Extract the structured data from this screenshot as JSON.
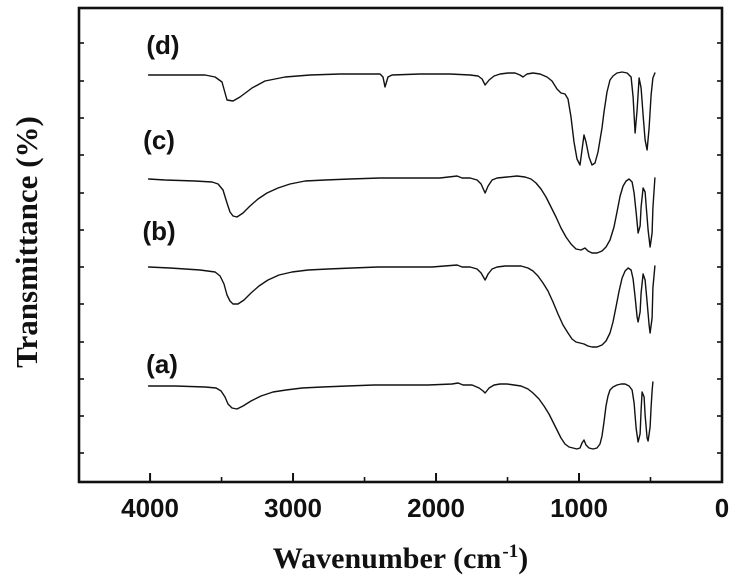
{
  "figure": {
    "background_color": "#ffffff",
    "ink_color": "#111111"
  },
  "chart_data": {
    "type": "line",
    "title": "",
    "description": "FTIR transmittance spectra of four samples (a)-(d), stacked with vertical offsets; y axis unlabeled (arbitrary %).",
    "xlabel": {
      "prefix": "Wavenumber (cm",
      "superscript": "-1",
      "suffix": ")"
    },
    "ylabel": "Transmittance (%)",
    "x_axis": {
      "unit": "cm-1",
      "range": [
        4497,
        0
      ],
      "reversed": true,
      "major_ticks": [
        4000,
        3000,
        2000,
        1000,
        0
      ],
      "minor_ticks": [
        3500,
        2500,
        1500,
        500
      ]
    },
    "y_axis": {
      "unit": "arbitrary transmittance (%)",
      "tick_labels_shown": false,
      "minor_ticks_au": [
        439,
        401,
        364,
        327,
        289,
        252,
        215,
        178,
        140,
        103,
        66,
        29
      ]
    },
    "series": [
      {
        "id": "d",
        "label": "(d)",
        "label_wn": 3910,
        "label_au": 437,
        "points": [
          [
            4010,
            407
          ],
          [
            3930,
            407
          ],
          [
            3615,
            407
          ],
          [
            3545,
            405
          ],
          [
            3497,
            400
          ],
          [
            3462,
            382
          ],
          [
            3420,
            381
          ],
          [
            3371,
            385
          ],
          [
            3287,
            394
          ],
          [
            3196,
            401
          ],
          [
            3056,
            405
          ],
          [
            2881,
            407
          ],
          [
            2671,
            408
          ],
          [
            2462,
            408
          ],
          [
            2392,
            408
          ],
          [
            2371,
            405
          ],
          [
            2357,
            395
          ],
          [
            2336,
            405
          ],
          [
            2308,
            407
          ],
          [
            2112,
            408
          ],
          [
            1902,
            408
          ],
          [
            1762,
            407
          ],
          [
            1706,
            406
          ],
          [
            1678,
            403
          ],
          [
            1657,
            397
          ],
          [
            1629,
            402
          ],
          [
            1594,
            406
          ],
          [
            1552,
            408
          ],
          [
            1496,
            409
          ],
          [
            1448,
            409
          ],
          [
            1413,
            407
          ],
          [
            1392,
            405
          ],
          [
            1364,
            408
          ],
          [
            1322,
            409
          ],
          [
            1273,
            408
          ],
          [
            1224,
            405
          ],
          [
            1189,
            401
          ],
          [
            1154,
            393
          ],
          [
            1126,
            389
          ],
          [
            1098,
            388
          ],
          [
            1077,
            383
          ],
          [
            1056,
            365
          ],
          [
            1035,
            340
          ],
          [
            1014,
            323
          ],
          [
            993,
            317
          ],
          [
            979,
            332
          ],
          [
            965,
            347
          ],
          [
            951,
            340
          ],
          [
            930,
            325
          ],
          [
            909,
            317
          ],
          [
            888,
            319
          ],
          [
            867,
            330
          ],
          [
            853,
            342
          ],
          [
            839,
            354
          ],
          [
            825,
            370
          ],
          [
            804,
            390
          ],
          [
            783,
            402
          ],
          [
            762,
            406
          ],
          [
            734,
            409
          ],
          [
            699,
            410
          ],
          [
            664,
            409
          ],
          [
            636,
            405
          ],
          [
            622,
            385
          ],
          [
            608,
            349
          ],
          [
            594,
            372
          ],
          [
            580,
            404
          ],
          [
            566,
            394
          ],
          [
            552,
            367
          ],
          [
            538,
            342
          ],
          [
            524,
            332
          ],
          [
            510,
            354
          ],
          [
            496,
            387
          ],
          [
            483,
            404
          ],
          [
            469,
            409
          ]
        ]
      },
      {
        "id": "c",
        "label": "(c)",
        "label_wn": 3937,
        "label_au": 342,
        "points": [
          [
            4010,
            303
          ],
          [
            3895,
            302
          ],
          [
            3685,
            301
          ],
          [
            3566,
            300
          ],
          [
            3524,
            298
          ],
          [
            3490,
            292
          ],
          [
            3462,
            279
          ],
          [
            3441,
            270
          ],
          [
            3420,
            266
          ],
          [
            3392,
            265
          ],
          [
            3350,
            269
          ],
          [
            3301,
            276
          ],
          [
            3245,
            283
          ],
          [
            3182,
            289
          ],
          [
            3105,
            294
          ],
          [
            3021,
            298
          ],
          [
            2916,
            301
          ],
          [
            2776,
            302
          ],
          [
            2601,
            303
          ],
          [
            2392,
            304
          ],
          [
            2182,
            304
          ],
          [
            1972,
            304
          ],
          [
            1853,
            306
          ],
          [
            1818,
            304
          ],
          [
            1762,
            304
          ],
          [
            1713,
            302
          ],
          [
            1685,
            298
          ],
          [
            1657,
            289
          ],
          [
            1636,
            296
          ],
          [
            1608,
            302
          ],
          [
            1573,
            304
          ],
          [
            1503,
            305
          ],
          [
            1434,
            306
          ],
          [
            1378,
            305
          ],
          [
            1336,
            303
          ],
          [
            1301,
            299
          ],
          [
            1266,
            293
          ],
          [
            1231,
            285
          ],
          [
            1196,
            275
          ],
          [
            1161,
            265
          ],
          [
            1126,
            254
          ],
          [
            1091,
            245
          ],
          [
            1056,
            238
          ],
          [
            1021,
            233
          ],
          [
            986,
            232
          ],
          [
            958,
            234
          ],
          [
            937,
            231
          ],
          [
            909,
            229
          ],
          [
            874,
            229
          ],
          [
            839,
            231
          ],
          [
            811,
            235
          ],
          [
            783,
            242
          ],
          [
            755,
            255
          ],
          [
            734,
            270
          ],
          [
            713,
            286
          ],
          [
            692,
            296
          ],
          [
            671,
            301
          ],
          [
            650,
            303
          ],
          [
            629,
            300
          ],
          [
            615,
            289
          ],
          [
            601,
            270
          ],
          [
            587,
            249
          ],
          [
            573,
            256
          ],
          [
            566,
            275
          ],
          [
            552,
            294
          ],
          [
            538,
            290
          ],
          [
            531,
            277
          ],
          [
            517,
            252
          ],
          [
            503,
            235
          ],
          [
            489,
            249
          ],
          [
            483,
            274
          ],
          [
            469,
            304
          ]
        ]
      },
      {
        "id": "b",
        "label": "(b)",
        "label_wn": 3937,
        "label_au": 251,
        "points": [
          [
            4010,
            215
          ],
          [
            3860,
            214
          ],
          [
            3650,
            212
          ],
          [
            3545,
            210
          ],
          [
            3510,
            206
          ],
          [
            3483,
            198
          ],
          [
            3462,
            187
          ],
          [
            3441,
            181
          ],
          [
            3420,
            178
          ],
          [
            3385,
            178
          ],
          [
            3343,
            182
          ],
          [
            3294,
            189
          ],
          [
            3238,
            196
          ],
          [
            3175,
            202
          ],
          [
            3098,
            207
          ],
          [
            3007,
            210
          ],
          [
            2895,
            212
          ],
          [
            2755,
            213
          ],
          [
            2587,
            214
          ],
          [
            2406,
            215
          ],
          [
            2217,
            215
          ],
          [
            2028,
            215
          ],
          [
            1853,
            217
          ],
          [
            1818,
            215
          ],
          [
            1762,
            215
          ],
          [
            1713,
            213
          ],
          [
            1685,
            209
          ],
          [
            1657,
            202
          ],
          [
            1636,
            208
          ],
          [
            1608,
            213
          ],
          [
            1573,
            215
          ],
          [
            1517,
            216
          ],
          [
            1461,
            216
          ],
          [
            1406,
            216
          ],
          [
            1357,
            214
          ],
          [
            1322,
            211
          ],
          [
            1287,
            206
          ],
          [
            1252,
            199
          ],
          [
            1217,
            191
          ],
          [
            1182,
            180
          ],
          [
            1147,
            168
          ],
          [
            1112,
            157
          ],
          [
            1077,
            149
          ],
          [
            1049,
            143
          ],
          [
            1021,
            140
          ],
          [
            993,
            139
          ],
          [
            965,
            138
          ],
          [
            937,
            136
          ],
          [
            909,
            135
          ],
          [
            874,
            135
          ],
          [
            839,
            137
          ],
          [
            811,
            141
          ],
          [
            783,
            149
          ],
          [
            762,
            160
          ],
          [
            741,
            175
          ],
          [
            720,
            191
          ],
          [
            699,
            204
          ],
          [
            678,
            211
          ],
          [
            657,
            214
          ],
          [
            636,
            212
          ],
          [
            622,
            203
          ],
          [
            608,
            185
          ],
          [
            594,
            165
          ],
          [
            587,
            160
          ],
          [
            573,
            170
          ],
          [
            566,
            189
          ],
          [
            552,
            208
          ],
          [
            538,
            202
          ],
          [
            524,
            180
          ],
          [
            510,
            157
          ],
          [
            503,
            149
          ],
          [
            489,
            164
          ],
          [
            483,
            194
          ],
          [
            469,
            216
          ]
        ]
      },
      {
        "id": "a",
        "label": "(a)",
        "label_wn": 3916,
        "label_au": 118,
        "points": [
          [
            4010,
            96
          ],
          [
            3825,
            96
          ],
          [
            3615,
            95
          ],
          [
            3538,
            94
          ],
          [
            3503,
            91
          ],
          [
            3476,
            85
          ],
          [
            3455,
            78
          ],
          [
            3427,
            74
          ],
          [
            3392,
            73
          ],
          [
            3350,
            76
          ],
          [
            3294,
            81
          ],
          [
            3224,
            86
          ],
          [
            3140,
            90
          ],
          [
            3049,
            92
          ],
          [
            2937,
            94
          ],
          [
            2797,
            95
          ],
          [
            2622,
            96
          ],
          [
            2434,
            97
          ],
          [
            2252,
            97
          ],
          [
            2056,
            97
          ],
          [
            1888,
            98
          ],
          [
            1846,
            99
          ],
          [
            1811,
            97
          ],
          [
            1748,
            97
          ],
          [
            1699,
            94
          ],
          [
            1671,
            91
          ],
          [
            1657,
            89
          ],
          [
            1629,
            94
          ],
          [
            1594,
            97
          ],
          [
            1552,
            98
          ],
          [
            1503,
            98
          ],
          [
            1454,
            97
          ],
          [
            1406,
            96
          ],
          [
            1357,
            93
          ],
          [
            1322,
            89
          ],
          [
            1280,
            83
          ],
          [
            1245,
            76
          ],
          [
            1210,
            68
          ],
          [
            1182,
            60
          ],
          [
            1154,
            52
          ],
          [
            1126,
            44
          ],
          [
            1098,
            38
          ],
          [
            1070,
            35
          ],
          [
            1042,
            34
          ],
          [
            1014,
            33
          ],
          [
            993,
            34
          ],
          [
            979,
            39
          ],
          [
            965,
            42
          ],
          [
            951,
            37
          ],
          [
            930,
            34
          ],
          [
            902,
            33
          ],
          [
            874,
            34
          ],
          [
            853,
            38
          ],
          [
            839,
            46
          ],
          [
            825,
            60
          ],
          [
            811,
            76
          ],
          [
            797,
            86
          ],
          [
            783,
            92
          ],
          [
            762,
            95
          ],
          [
            734,
            97
          ],
          [
            706,
            98
          ],
          [
            678,
            98
          ],
          [
            650,
            96
          ],
          [
            629,
            92
          ],
          [
            615,
            79
          ],
          [
            601,
            54
          ],
          [
            587,
            40
          ],
          [
            573,
            48
          ],
          [
            566,
            72
          ],
          [
            559,
            90
          ],
          [
            545,
            85
          ],
          [
            538,
            67
          ],
          [
            524,
            44
          ],
          [
            517,
            41
          ],
          [
            503,
            55
          ],
          [
            496,
            75
          ],
          [
            489,
            91
          ],
          [
            483,
            100
          ]
        ]
      }
    ]
  }
}
